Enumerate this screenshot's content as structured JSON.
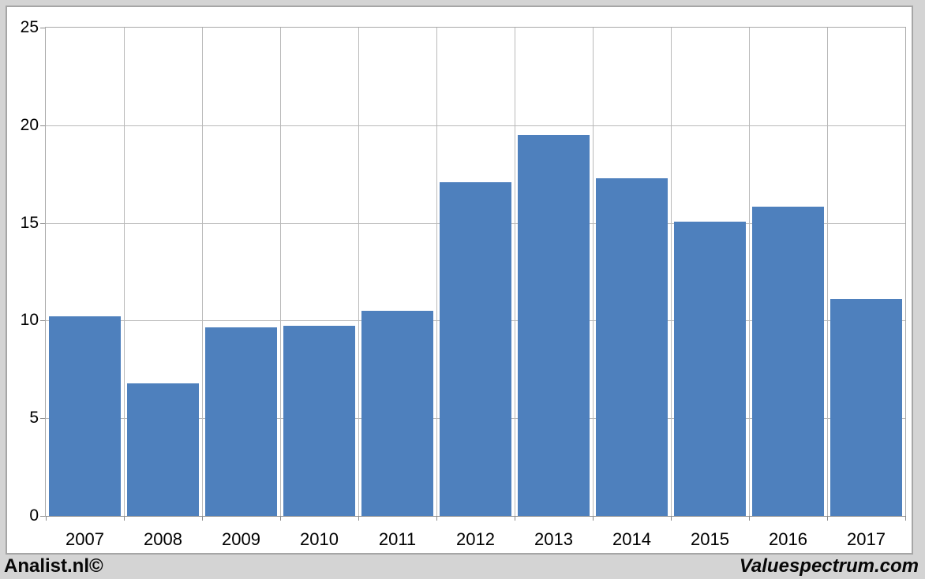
{
  "chart_data": {
    "type": "bar",
    "categories": [
      "2007",
      "2008",
      "2009",
      "2010",
      "2011",
      "2012",
      "2013",
      "2014",
      "2015",
      "2016",
      "2017"
    ],
    "values": [
      10.2,
      6.8,
      9.65,
      9.75,
      10.5,
      17.1,
      19.5,
      17.3,
      15.05,
      15.85,
      11.1
    ],
    "title": "",
    "xlabel": "",
    "ylabel": "",
    "ylim": [
      0,
      25
    ],
    "yticks": [
      0,
      5,
      10,
      15,
      20,
      25
    ],
    "grid": "horizontal and vertical gridlines, light gray",
    "legend_position": "none",
    "bar_color": "#4e80bd"
  },
  "footer": {
    "left_text": "Analist.nl©",
    "right_text": "Valuespectrum.com"
  },
  "colors": {
    "page_background": "#d4d4d4",
    "window_background": "#ffffff",
    "window_border": "#a6a6a6",
    "plot_border": "#a9a9a9",
    "axis_line": "#8c8c8c",
    "gridline": "#b9b9b9",
    "bar": "#4e80bd",
    "label_text": "#000000"
  }
}
